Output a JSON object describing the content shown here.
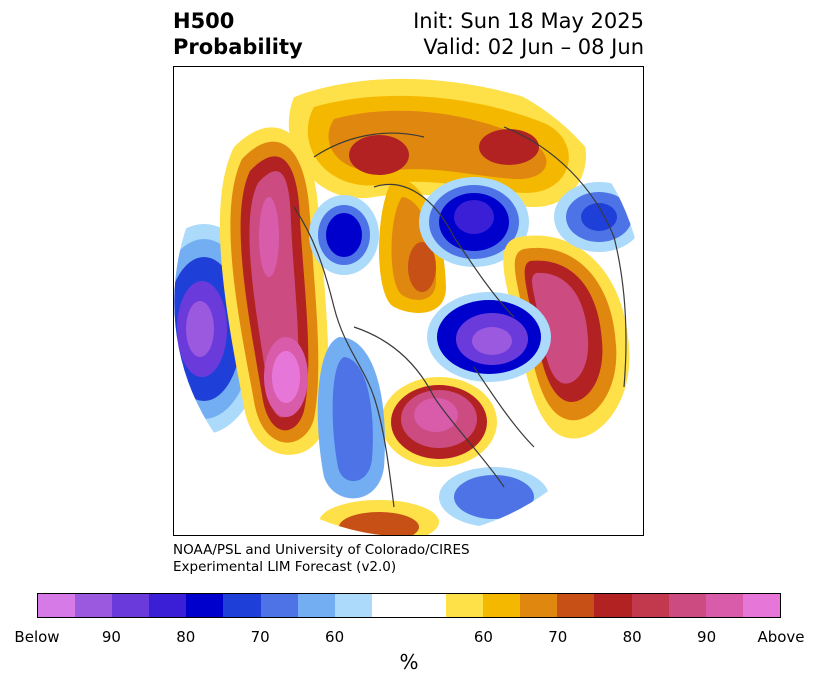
{
  "title": {
    "left_line1": "H500",
    "left_line2": "Probability",
    "right_line1": "Init: Sun 18 May 2025",
    "right_line2": "Valid: 02 Jun – 08 Jun"
  },
  "credit": {
    "line1": "NOAA/PSL and University of Colorado/CIRES",
    "line2": "Experimental LIM Forecast (v2.0)"
  },
  "colorbar": {
    "unit": "%",
    "tick_labels": [
      "Below",
      "90",
      "80",
      "70",
      "60",
      "60",
      "70",
      "80",
      "90",
      "Above"
    ],
    "colors": [
      "#d67ae8",
      "#9b59e0",
      "#6a3adb",
      "#3b1fd6",
      "#0000cc",
      "#1f3fd9",
      "#4d73e6",
      "#74aef2",
      "#acdafa",
      "#ffffff",
      "#fee048",
      "#f5b800",
      "#e0870f",
      "#c65016",
      "#b22222",
      "#c2394d",
      "#cc4c82",
      "#d95caa",
      "#e677d9"
    ]
  },
  "map": {
    "projection": "north polar stereographic",
    "below_colors": {
      "p60": "#acdafa",
      "p65": "#74aef2",
      "p70": "#4d73e6",
      "p75": "#1f3fd9",
      "p80": "#0000cc",
      "p85": "#3b1fd6",
      "p90": "#6a3adb",
      "p95": "#9b59e0",
      "p100": "#d67ae8"
    },
    "above_colors": {
      "p60": "#fee048",
      "p65": "#f5b800",
      "p70": "#e0870f",
      "p75": "#c65016",
      "p80": "#b22222",
      "p85": "#c2394d",
      "p90": "#cc4c82",
      "p95": "#d95caa",
      "p100": "#e677d9"
    }
  }
}
